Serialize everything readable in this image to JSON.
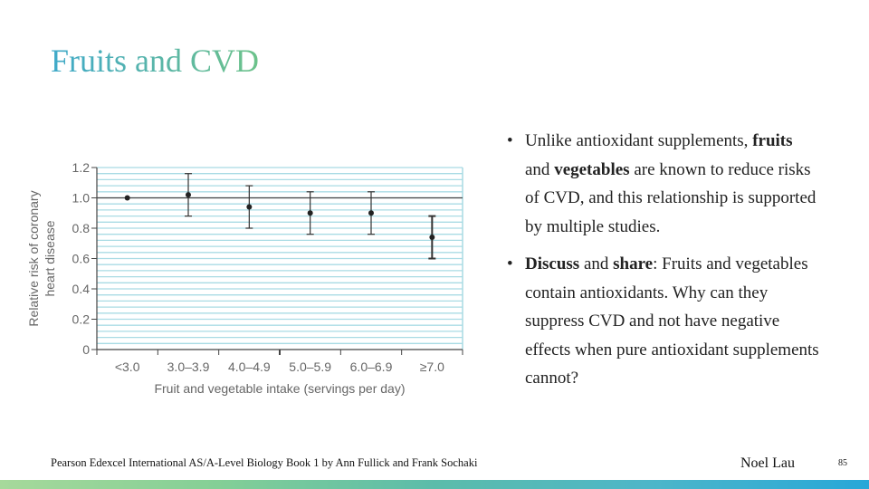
{
  "slide": {
    "title": "Fruits and CVD",
    "source": "Pearson Edexcel International AS/A-Level Biology Book 1 by Ann Fullick and Frank Sochaki",
    "author": "Noel Lau",
    "page_number": "85",
    "colors": {
      "title_start": "#3fa9c9",
      "title_end": "#6cc28a",
      "grid": "#a9dbe4",
      "footer_start": "#a6d99b",
      "footer_end": "#27a7d8"
    }
  },
  "bullets": [
    {
      "parts": [
        {
          "text": "Unlike antioxidant supplements, ",
          "bold": false
        },
        {
          "text": "fruits",
          "bold": true
        },
        {
          "text": " and ",
          "bold": false
        },
        {
          "text": "vegetables",
          "bold": true
        },
        {
          "text": " are known to reduce risks of  CVD, and this relationship is supported by multiple studies.",
          "bold": false
        }
      ]
    },
    {
      "parts": [
        {
          "text": "Discuss",
          "bold": true
        },
        {
          "text": " and ",
          "bold": false
        },
        {
          "text": "share",
          "bold": true
        },
        {
          "text": ": Fruits and vegetables contain antioxidants. Why can they suppress CVD and not have negative effects when pure antioxidant supplements cannot?",
          "bold": false
        }
      ]
    }
  ],
  "chart_data": {
    "type": "scatter",
    "title": "",
    "xlabel": "Fruit and vegetable intake (servings per day)",
    "ylabel": "Relative risk of coronary heart disease",
    "categories": [
      "<3.0",
      "3.0–3.9",
      "4.0–4.9",
      "5.0–5.9",
      "6.0–6.9",
      "≥7.0"
    ],
    "series": [
      {
        "name": "Relative risk",
        "values": [
          1.0,
          1.02,
          0.94,
          0.9,
          0.9,
          0.74
        ],
        "error_low": [
          null,
          0.88,
          0.8,
          0.76,
          0.76,
          0.6
        ],
        "error_high": [
          null,
          1.16,
          1.08,
          1.04,
          1.04,
          0.88
        ]
      }
    ],
    "yticks": [
      "0",
      "0.2",
      "0.4",
      "0.6",
      "0.8",
      "1.0",
      "1.2"
    ],
    "ylim": [
      0,
      1.2
    ],
    "reference_line": 1.0,
    "grid": true,
    "legend": "none"
  }
}
